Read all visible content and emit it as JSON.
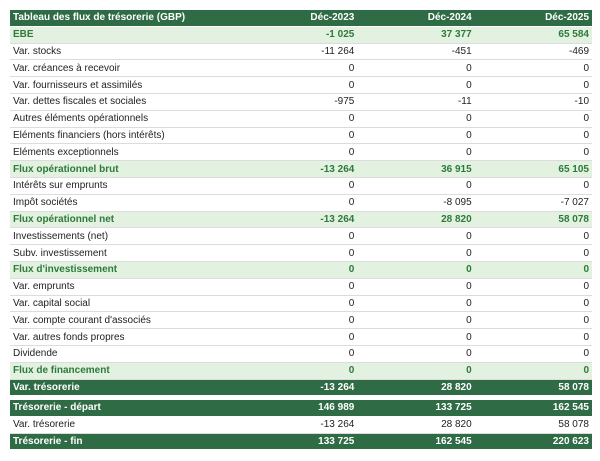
{
  "header": {
    "title": "Tableau des flux de trésorerie (GBP)",
    "columns": [
      "Déc-2023",
      "Déc-2024",
      "Déc-2025"
    ]
  },
  "table": {
    "rows": [
      [
        "EBE",
        "-1 025",
        "37 377",
        "65 584"
      ],
      [
        "Var. stocks",
        "-11 264",
        "-451",
        "-469"
      ],
      [
        "Var. créances à recevoir",
        "0",
        "0",
        "0"
      ],
      [
        "Var. fournisseurs et assimilés",
        "0",
        "0",
        "0"
      ],
      [
        "Var. dettes fiscales et sociales",
        "-975",
        "-11",
        "-10"
      ],
      [
        "Autres éléments opérationnels",
        "0",
        "0",
        "0"
      ],
      [
        "Eléments financiers (hors intérêts)",
        "0",
        "0",
        "0"
      ],
      [
        "Eléments exceptionnels",
        "0",
        "0",
        "0"
      ],
      [
        "Flux opérationnel brut",
        "-13 264",
        "36 915",
        "65 105"
      ],
      [
        "Intérêts sur emprunts",
        "0",
        "0",
        "0"
      ],
      [
        "Impôt sociétés",
        "0",
        "-8 095",
        "-7 027"
      ],
      [
        "Flux opérationnel net",
        "-13 264",
        "28 820",
        "58 078"
      ],
      [
        "Investissements (net)",
        "0",
        "0",
        "0"
      ],
      [
        "Subv. investissement",
        "0",
        "0",
        "0"
      ],
      [
        "Flux d'investissement",
        "0",
        "0",
        "0"
      ],
      [
        "Var. emprunts",
        "0",
        "0",
        "0"
      ],
      [
        "Var. capital social",
        "0",
        "0",
        "0"
      ],
      [
        "Var. compte courant d'associés",
        "0",
        "0",
        "0"
      ],
      [
        "Var. autres fonds propres",
        "0",
        "0",
        "0"
      ],
      [
        "Dividende",
        "0",
        "0",
        "0"
      ],
      [
        "Flux de financement",
        "0",
        "0",
        "0"
      ],
      [
        "Var. trésorerie",
        "-13 264",
        "28 820",
        "58 078"
      ]
    ]
  },
  "summary": {
    "rows": [
      [
        "Trésorerie - départ",
        "146 989",
        "133 725",
        "162 545"
      ],
      [
        "Var. trésorerie",
        "-13 264",
        "28 820",
        "58 078"
      ],
      [
        "Trésorerie - fin",
        "133 725",
        "162 545",
        "220 623"
      ]
    ]
  }
}
